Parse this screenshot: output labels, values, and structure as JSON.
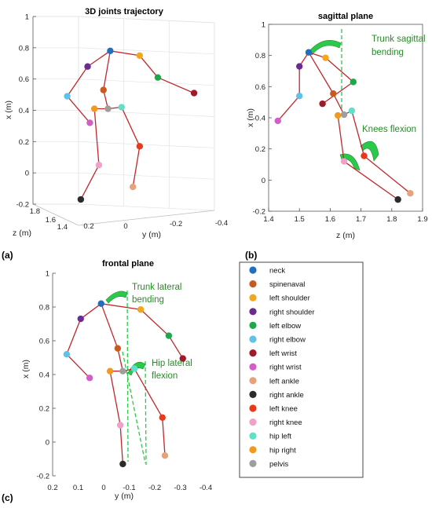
{
  "chart_data": [
    {
      "type": "scatter",
      "subtype": "3d-skeleton",
      "title": "3D joints trajectory",
      "panel_label": "(a)",
      "xlabel": "y (m)",
      "ylabel": "x (m)",
      "zlabel": "z (m)",
      "y_ticks": [
        "1",
        "0.8",
        "0.6",
        "0.4",
        "0.2",
        "0",
        "-0.2"
      ],
      "h_ticks": [
        "0.2",
        "0",
        "-0.2",
        "-0.4"
      ],
      "z_ticks": [
        "1.8",
        "1.6",
        "1.4"
      ],
      "xlim": [
        -0.4,
        0.2
      ],
      "ylim": [
        -0.2,
        1.0
      ],
      "zlim": [
        1.4,
        1.8
      ],
      "grid": true,
      "joints": [
        {
          "name": "neck",
          "x": 0.06,
          "y": 0.78
        },
        {
          "name": "left shoulder",
          "x": -0.07,
          "y": 0.75
        },
        {
          "name": "right shoulder",
          "x": 0.16,
          "y": 0.68
        },
        {
          "name": "left elbow",
          "x": -0.15,
          "y": 0.61
        },
        {
          "name": "right elbow",
          "x": 0.25,
          "y": 0.49
        },
        {
          "name": "left wrist",
          "x": -0.31,
          "y": 0.51
        },
        {
          "name": "right wrist",
          "x": 0.15,
          "y": 0.32
        },
        {
          "name": "spinenaval",
          "x": 0.09,
          "y": 0.53
        },
        {
          "name": "hip right",
          "x": 0.13,
          "y": 0.41
        },
        {
          "name": "pelvis",
          "x": 0.07,
          "y": 0.41
        },
        {
          "name": "hip left",
          "x": 0.01,
          "y": 0.42
        },
        {
          "name": "left knee",
          "x": -0.07,
          "y": 0.17
        },
        {
          "name": "right knee",
          "x": 0.11,
          "y": 0.05
        },
        {
          "name": "left ankle",
          "x": -0.04,
          "y": -0.09
        },
        {
          "name": "right ankle",
          "x": 0.19,
          "y": -0.17
        }
      ]
    },
    {
      "type": "scatter",
      "subtype": "skeleton",
      "title": "sagittal plane",
      "panel_label": "(b)",
      "xlabel": "z (m)",
      "ylabel": "x (m)",
      "x_ticks": [
        "1.4",
        "1.5",
        "1.6",
        "1.7",
        "1.8",
        "1.9"
      ],
      "y_ticks": [
        "1",
        "0.8",
        "0.6",
        "0.4",
        "0.2",
        "0",
        "-0.2"
      ],
      "xlim": [
        1.4,
        1.9
      ],
      "ylim": [
        -0.2,
        1.0
      ],
      "grid": false,
      "annotations": [
        "Trunk sagittal",
        "bending",
        "Knees flexion"
      ],
      "joints": [
        {
          "name": "neck",
          "x": 1.53,
          "y": 0.82
        },
        {
          "name": "left shoulder",
          "x": 1.585,
          "y": 0.785
        },
        {
          "name": "right shoulder",
          "x": 1.5,
          "y": 0.73
        },
        {
          "name": "left elbow",
          "x": 1.675,
          "y": 0.63
        },
        {
          "name": "right elbow",
          "x": 1.5,
          "y": 0.54
        },
        {
          "name": "left wrist",
          "x": 1.575,
          "y": 0.49
        },
        {
          "name": "right wrist",
          "x": 1.43,
          "y": 0.38
        },
        {
          "name": "spinenaval",
          "x": 1.61,
          "y": 0.555
        },
        {
          "name": "hip left",
          "x": 1.67,
          "y": 0.445
        },
        {
          "name": "pelvis",
          "x": 1.645,
          "y": 0.42
        },
        {
          "name": "hip right",
          "x": 1.625,
          "y": 0.415
        },
        {
          "name": "left knee",
          "x": 1.71,
          "y": 0.155
        },
        {
          "name": "right knee",
          "x": 1.645,
          "y": 0.12
        },
        {
          "name": "left ankle",
          "x": 1.86,
          "y": -0.085
        },
        {
          "name": "right ankle",
          "x": 1.82,
          "y": -0.125
        }
      ]
    },
    {
      "type": "scatter",
      "subtype": "skeleton",
      "title": "frontal plane",
      "panel_label": "(c)",
      "xlabel": "y (m)",
      "ylabel": "x (m)",
      "x_ticks": [
        "0.2",
        "0.1",
        "0",
        "-0.1",
        "-0.2",
        "-0.3",
        "-0.4"
      ],
      "y_ticks": [
        "1",
        "0.8",
        "0.6",
        "0.4",
        "0.2",
        "0",
        "-0.2"
      ],
      "xlim": [
        0.2,
        -0.4
      ],
      "ylim": [
        -0.2,
        1.0
      ],
      "grid": false,
      "annotations": [
        "Trunk lateral",
        "bending",
        "Hip lateral",
        "flexion"
      ],
      "joints": [
        {
          "name": "neck",
          "x": 0.01,
          "y": 0.82
        },
        {
          "name": "left shoulder",
          "x": -0.145,
          "y": 0.785
        },
        {
          "name": "right shoulder",
          "x": 0.09,
          "y": 0.73
        },
        {
          "name": "left elbow",
          "x": -0.255,
          "y": 0.63
        },
        {
          "name": "right elbow",
          "x": 0.145,
          "y": 0.52
        },
        {
          "name": "left wrist",
          "x": -0.31,
          "y": 0.495
        },
        {
          "name": "right wrist",
          "x": 0.055,
          "y": 0.38
        },
        {
          "name": "spinenaval",
          "x": -0.055,
          "y": 0.555
        },
        {
          "name": "pelvis",
          "x": -0.075,
          "y": 0.42
        },
        {
          "name": "hip right",
          "x": -0.025,
          "y": 0.42
        },
        {
          "name": "hip left",
          "x": -0.12,
          "y": 0.435
        },
        {
          "name": "left knee",
          "x": -0.23,
          "y": 0.145
        },
        {
          "name": "right knee",
          "x": -0.065,
          "y": 0.1
        },
        {
          "name": "left ankle",
          "x": -0.24,
          "y": -0.08
        },
        {
          "name": "right ankle",
          "x": -0.075,
          "y": -0.13
        }
      ]
    }
  ],
  "legend": {
    "entries": [
      {
        "label": "neck",
        "color": "#1f6fc0"
      },
      {
        "label": "spinenaval",
        "color": "#c85a1e"
      },
      {
        "label": "left shoulder",
        "color": "#f0a81e"
      },
      {
        "label": "right shoulder",
        "color": "#6b2c91"
      },
      {
        "label": "left elbow",
        "color": "#1fa74b"
      },
      {
        "label": "right elbow",
        "color": "#5fc3e8"
      },
      {
        "label": "left wrist",
        "color": "#a0192b"
      },
      {
        "label": "right wrist",
        "color": "#d45ec9"
      },
      {
        "label": "left ankle",
        "color": "#e8a27a"
      },
      {
        "label": "right ankle",
        "color": "#2b2b2b"
      },
      {
        "label": "left knee",
        "color": "#e8391a"
      },
      {
        "label": "right knee",
        "color": "#f2a0c8"
      },
      {
        "label": "hip left",
        "color": "#5fe0c8"
      },
      {
        "label": "hip right",
        "color": "#f29a1e"
      },
      {
        "label": "pelvis",
        "color": "#9e9e9e"
      }
    ]
  },
  "colors": {
    "bone": "#c0272d",
    "annotation": "#2a8a2a",
    "arc": "#2cc84a"
  }
}
